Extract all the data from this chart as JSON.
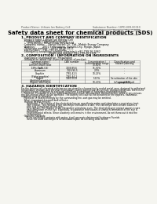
{
  "bg_color": "#f5f5f0",
  "header_top_left": "Product Name: Lithium Ion Battery Cell",
  "header_top_right": "Substance Number: 10PD-009-00010\nEstablishment / Revision: Dec.7.2010",
  "title": "Safety data sheet for chemical products (SDS)",
  "section1_title": "1. PRODUCT AND COMPANY IDENTIFICATION",
  "section1_lines": [
    "  · Product name: Lithium Ion Battery Cell",
    "  · Product code: Cylindrical-type cell",
    "        IHR18650U, IHR18650L, IHR18650A",
    "  · Company name:    Sanyo Electric Co., Ltd., Mobile Energy Company",
    "  · Address:         2001 Sankyodaira, Sumoto-City, Hyogo, Japan",
    "  · Telephone number:   +81-799-26-4111",
    "  · Fax number:   +81-799-26-4120",
    "  · Emergency telephone number (Weekday) +81-799-26-2662",
    "                                   (Night and holiday) +81-799-26-2101"
  ],
  "section2_title": "2. COMPOSITION / INFORMATION ON INGREDIENTS",
  "section2_sub": "  · Substance or preparation: Preparation",
  "section2_sub2": "  · Information about the chemical nature of product:",
  "table_headers": [
    "Common name /",
    "CAS number",
    "Concentration /",
    "Classification and"
  ],
  "table_headers2": [
    "Several name",
    "",
    "Concentration range",
    "hazard labeling"
  ],
  "table_rows": [
    [
      "Lithium cobalt oxide\n(LiMn-Co-Ni-O4)",
      "-",
      "30-60%",
      "-"
    ],
    [
      "Iron",
      "7439-89-6",
      "15-30%",
      "-"
    ],
    [
      "Aluminum",
      "7429-90-5",
      "2-5%",
      "-"
    ],
    [
      "Graphite\n(Flake graphite)\n(Artificial graphite)",
      "7782-42-5\n7782-44-2",
      "10-25%",
      "-"
    ],
    [
      "Copper",
      "7440-50-8",
      "5-15%",
      "Sensitization of the skin\ngroup R43"
    ],
    [
      "Organic electrolyte",
      "-",
      "10-20%",
      "Inflammable liquid"
    ]
  ],
  "section3_title": "3. HAZARDS IDENTIFICATION",
  "section3_text": [
    "For the battery cell, chemical substances are stored in a hermetically-sealed metal case, designed to withstand",
    "temperature changes and pressure fluctuations during normal use. As a result, during normal use, there is no",
    "physical danger of ignition or explosion and there is no danger of hazardous materials leakage.",
    "    However, if exposed to a fire, added mechanical shock, decomposed, shorted electric wires or any misuse,",
    "the gas release valve can be operated. The battery cell case will be breached or fire appears, hazardous",
    "materials may be released.",
    "    Moreover, if heated strongly by the surrounding fire, soot gas may be emitted."
  ],
  "section3_sub1": "  · Most important hazard and effects:",
  "section3_sub1a": "    Human health effects:",
  "section3_inhalation": [
    "        Inhalation: The release of the electrolyte has an anesthesia action and stimulates a respiratory tract."
  ],
  "section3_skin": [
    "        Skin contact: The release of the electrolyte stimulates a skin. The electrolyte skin contact causes a",
    "        sore and stimulation on the skin."
  ],
  "section3_eye": [
    "        Eye contact: The release of the electrolyte stimulates eyes. The electrolyte eye contact causes a sore",
    "        and stimulation on the eye. Especially, a substance that causes a strong inflammation of the eye is",
    "        contained."
  ],
  "section3_env": [
    "        Environmental effects: Since a battery cell remains in the environment, do not throw out it into the",
    "        environment."
  ],
  "section3_sub2": "  · Specific hazards:",
  "section3_specific": [
    "        If the electrolyte contacts with water, it will generate detrimental hydrogen fluoride.",
    "        Since the used electrolyte is inflammable liquid, do not bring close to fire."
  ]
}
